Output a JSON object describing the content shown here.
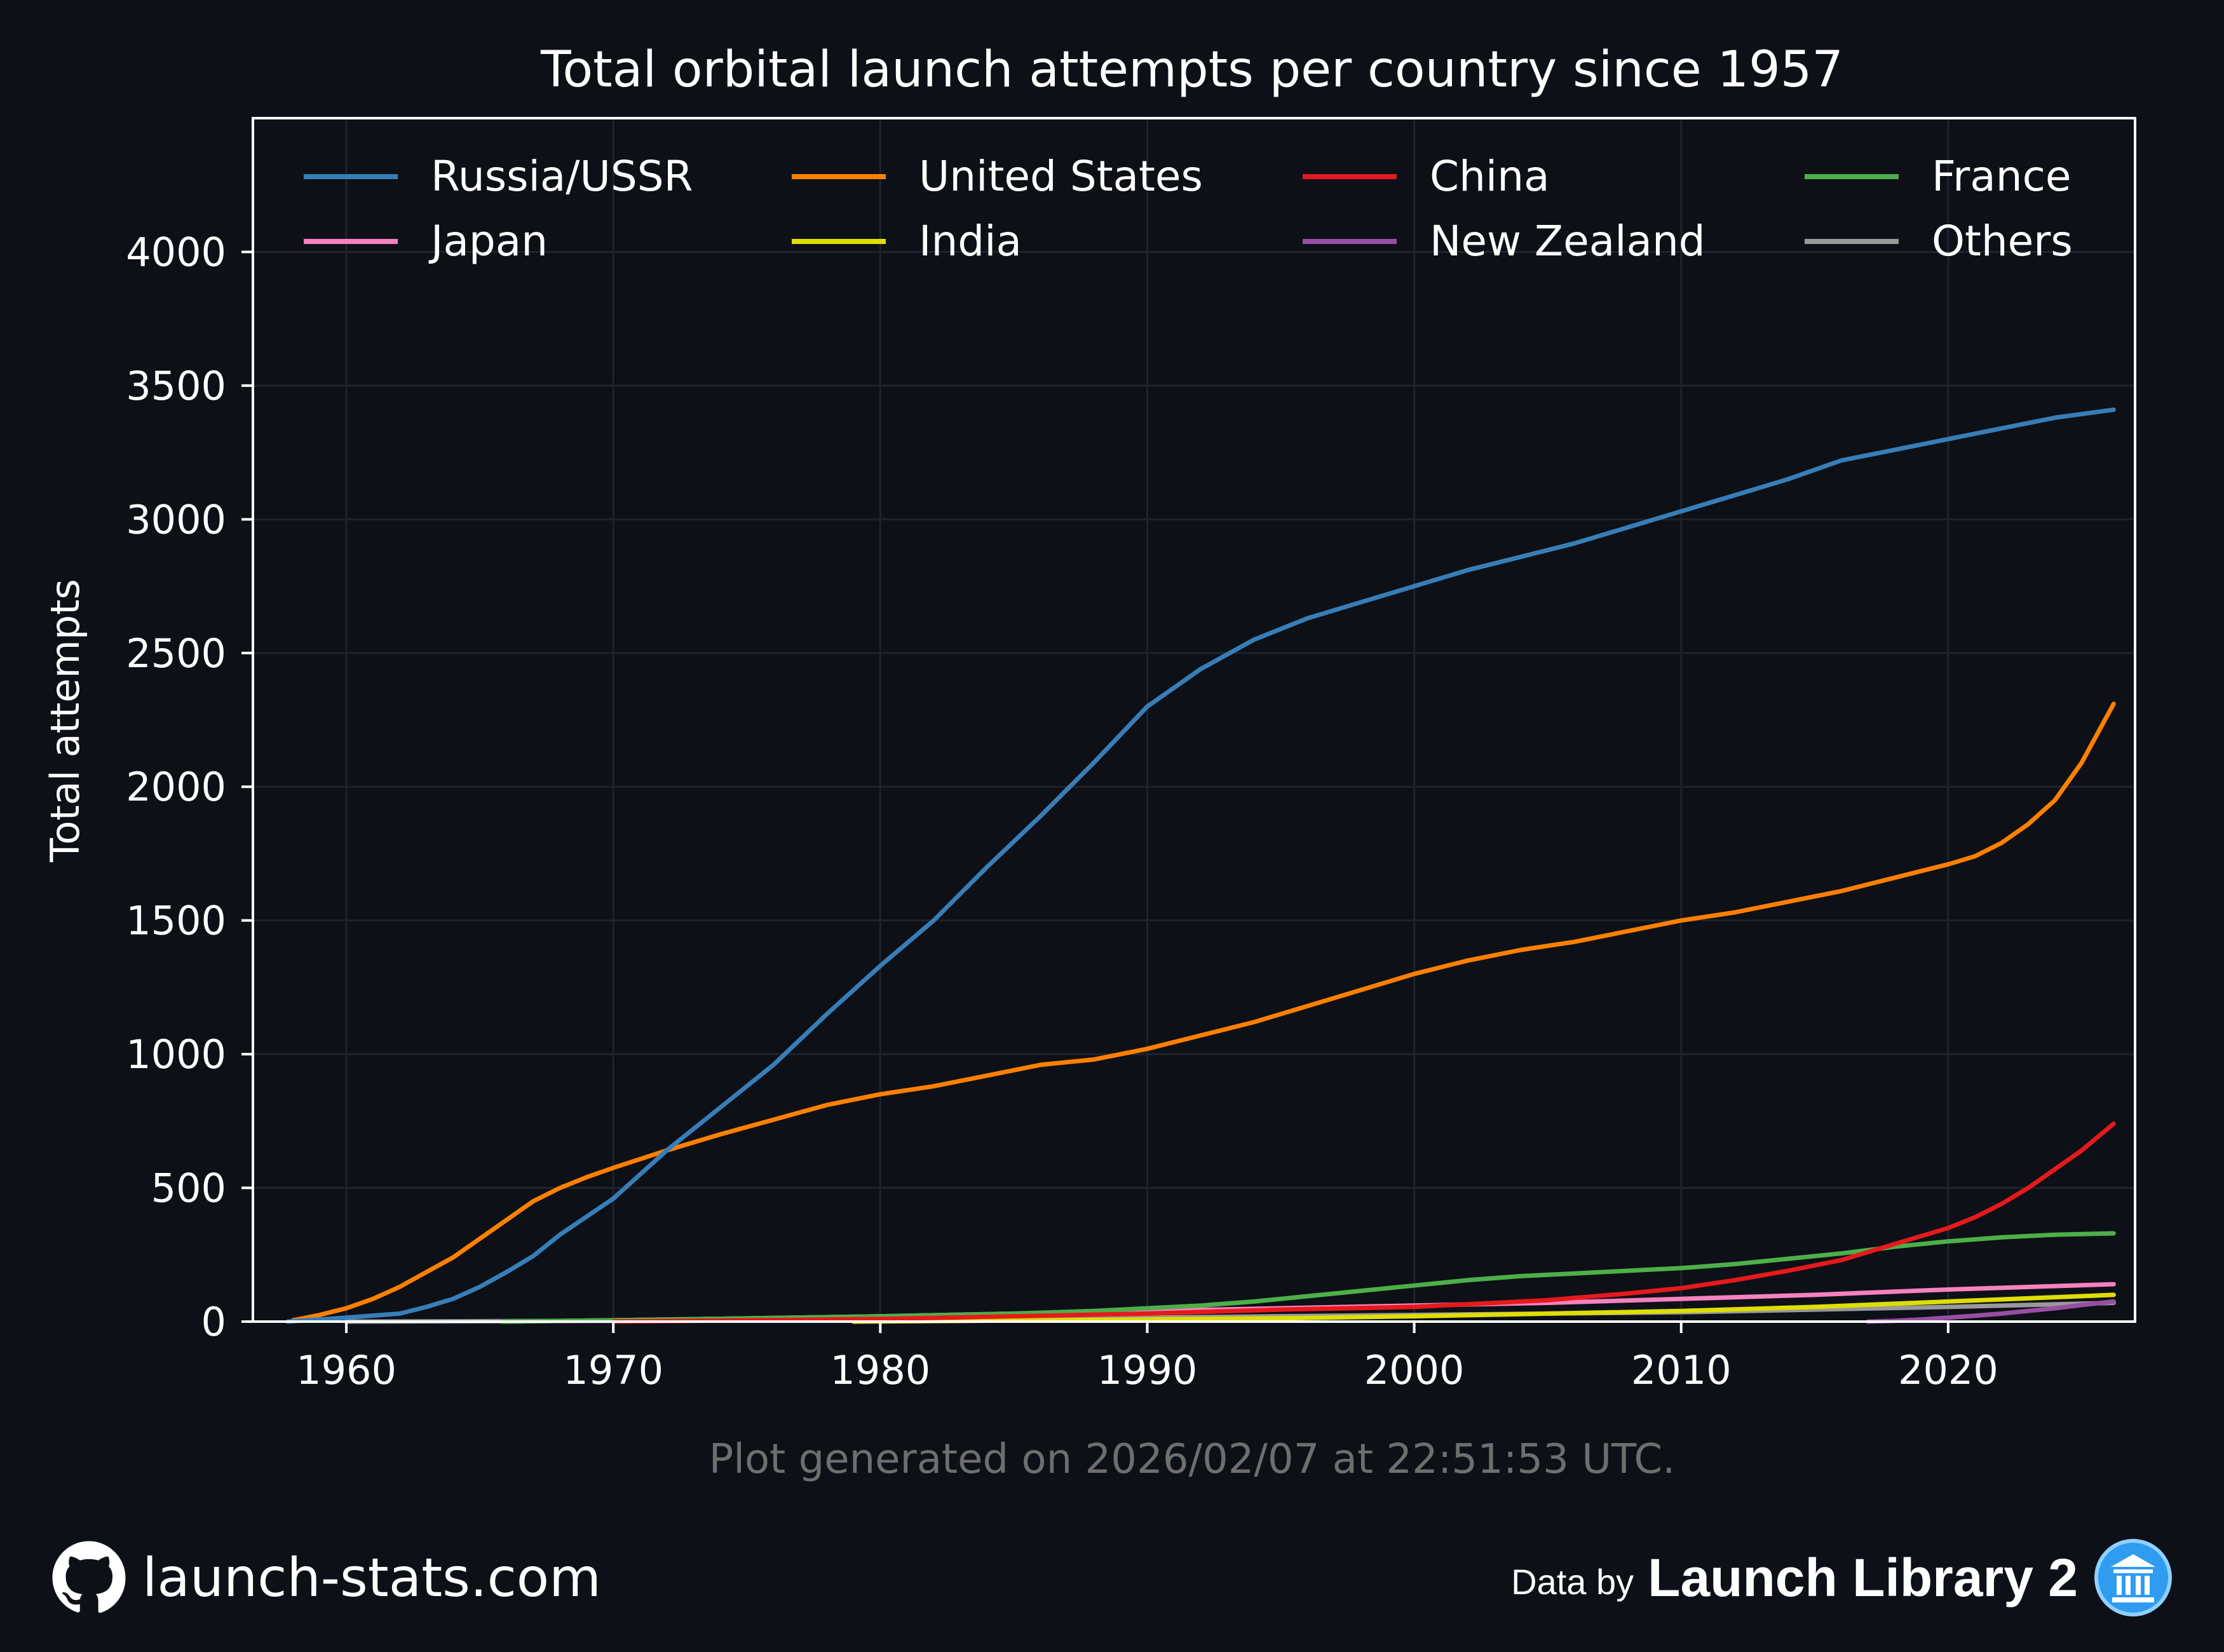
{
  "chart_data": {
    "type": "line",
    "title": "Total orbital launch attempts per country since 1957",
    "xlabel": "",
    "ylabel": "Total attempts",
    "xlim": [
      1956.5,
      2027.0
    ],
    "ylim": [
      0,
      4500
    ],
    "xticks": [
      1960,
      1970,
      1980,
      1990,
      2000,
      2010,
      2020
    ],
    "yticks": [
      0,
      500,
      1000,
      1500,
      2000,
      2500,
      3000,
      3500,
      4000
    ],
    "grid": true,
    "legend_position": "top",
    "series": [
      {
        "name": "Russia/USSR",
        "color": "#377eb8",
        "x": [
          1957.8,
          1960,
          1962,
          1963,
          1964,
          1965,
          1966,
          1967,
          1968,
          1970,
          1972,
          1974,
          1976,
          1978,
          1980,
          1982,
          1984,
          1986,
          1988,
          1990,
          1992,
          1994,
          1996,
          1998,
          2000,
          2002,
          2004,
          2006,
          2008,
          2010,
          2012,
          2014,
          2016,
          2018,
          2020,
          2022,
          2024,
          2026.2
        ],
        "y": [
          0,
          15,
          30,
          55,
          85,
          130,
          185,
          245,
          325,
          460,
          640,
          800,
          960,
          1150,
          1330,
          1500,
          1700,
          1890,
          2090,
          2300,
          2440,
          2550,
          2630,
          2690,
          2750,
          2810,
          2860,
          2910,
          2970,
          3030,
          3090,
          3150,
          3220,
          3260,
          3300,
          3340,
          3380,
          3410
        ]
      },
      {
        "name": "United States",
        "color": "#ff7f00",
        "x": [
          1958,
          1959,
          1960,
          1961,
          1962,
          1963,
          1964,
          1965,
          1966,
          1967,
          1968,
          1969,
          1970,
          1972,
          1974,
          1976,
          1978,
          1980,
          1982,
          1984,
          1986,
          1988,
          1990,
          1992,
          1994,
          1996,
          1998,
          2000,
          2002,
          2004,
          2006,
          2008,
          2010,
          2012,
          2014,
          2016,
          2018,
          2020,
          2021,
          2022,
          2023,
          2024,
          2025,
          2026.2
        ],
        "y": [
          5,
          25,
          50,
          85,
          130,
          185,
          240,
          310,
          380,
          450,
          500,
          540,
          575,
          640,
          700,
          755,
          810,
          850,
          880,
          920,
          960,
          980,
          1020,
          1070,
          1120,
          1180,
          1240,
          1300,
          1350,
          1390,
          1420,
          1460,
          1500,
          1530,
          1570,
          1610,
          1660,
          1710,
          1740,
          1790,
          1860,
          1950,
          2090,
          2310
        ]
      },
      {
        "name": "China",
        "color": "#e41a1c",
        "x": [
          1970,
          1980,
          1990,
          1995,
          2000,
          2005,
          2008,
          2010,
          2012,
          2014,
          2016,
          2018,
          2019,
          2020,
          2021,
          2022,
          2023,
          2024,
          2025,
          2026.2
        ],
        "y": [
          0,
          10,
          30,
          45,
          55,
          80,
          105,
          125,
          155,
          190,
          230,
          290,
          320,
          350,
          390,
          440,
          500,
          570,
          640,
          740
        ]
      },
      {
        "name": "France",
        "color": "#4daf4a",
        "x": [
          1965.8,
          1970,
          1975,
          1980,
          1985,
          1988,
          1990,
          1992,
          1994,
          1996,
          1998,
          2000,
          2002,
          2004,
          2006,
          2008,
          2010,
          2012,
          2014,
          2016,
          2018,
          2020,
          2022,
          2024,
          2026.2
        ],
        "y": [
          0,
          5,
          12,
          20,
          30,
          40,
          50,
          60,
          75,
          95,
          115,
          135,
          155,
          170,
          180,
          190,
          200,
          215,
          235,
          255,
          280,
          300,
          315,
          325,
          330
        ]
      },
      {
        "name": "Japan",
        "color": "#f781bf",
        "x": [
          1966,
          1970,
          1975,
          1980,
          1985,
          1990,
          1995,
          2000,
          2005,
          2010,
          2015,
          2020,
          2026.2
        ],
        "y": [
          0,
          5,
          12,
          20,
          30,
          40,
          50,
          60,
          70,
          85,
          100,
          120,
          140
        ]
      },
      {
        "name": "India",
        "color": "#dede00",
        "x": [
          1979,
          1985,
          1990,
          1995,
          2000,
          2005,
          2010,
          2015,
          2020,
          2026.2
        ],
        "y": [
          0,
          4,
          8,
          12,
          20,
          30,
          40,
          55,
          75,
          100
        ]
      },
      {
        "name": "New Zealand",
        "color": "#984ea3",
        "x": [
          2017,
          2018,
          2019,
          2020,
          2021,
          2022,
          2023,
          2024,
          2025,
          2026.2
        ],
        "y": [
          0,
          3,
          8,
          15,
          22,
          30,
          40,
          50,
          62,
          75
        ]
      },
      {
        "name": "Others",
        "color": "#999999",
        "x": [
          1960,
          1970,
          1980,
          1990,
          2000,
          2010,
          2015,
          2020,
          2026.2
        ],
        "y": [
          0,
          3,
          8,
          15,
          25,
          35,
          45,
          55,
          70
        ]
      }
    ],
    "annotation": "Plot generated on 2026/02/07 at 22:51:53 UTC."
  },
  "footer": {
    "site": "launch-stats.com",
    "data_prefix": "Data by",
    "data_source": "Launch Library 2",
    "site_icon": "github-icon",
    "source_icon": "launch-library-icon"
  },
  "colors": {
    "background": "#0d1017",
    "text": "#ffffff",
    "muted": "#6e6e6e",
    "grid": "#1e232d"
  }
}
